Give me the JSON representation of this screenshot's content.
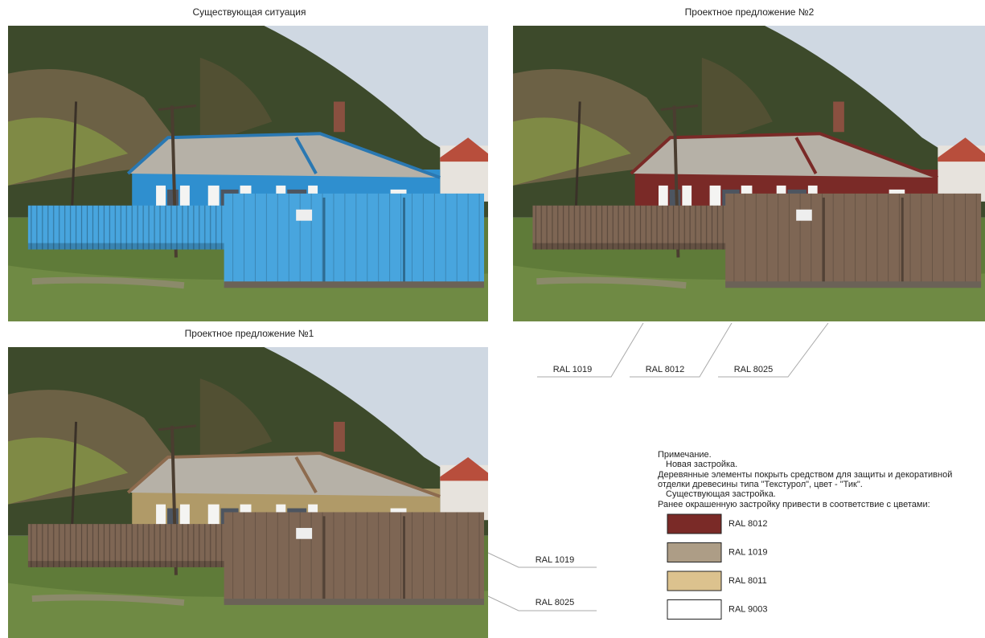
{
  "photos": [
    {
      "caption": "Существующая ситуация"
    },
    {
      "caption": "Проектное предложение №2"
    },
    {
      "caption": "Проектное предложение №1"
    }
  ],
  "callouts_proposal2": [
    "RAL 1019",
    "RAL 8012",
    "RAL 8025"
  ],
  "callouts_proposal1": [
    "RAL 1019",
    "RAL 8025"
  ],
  "note": {
    "title": "Примечание.",
    "new_heading": "Новая застройка.",
    "new_text_lines": [
      "Деревянные элементы покрыть средством для защиты и декоративной",
      "отделки древесины типа \"Текстурол\", цвет - \"Тик\"."
    ],
    "existing_heading": "Существующая застройка.",
    "existing_text": "Ранее окрашенную застройку привести в соответствие с цветами:",
    "swatches": [
      {
        "color": "#7a2a27",
        "label": "RAL 8012"
      },
      {
        "color": "#ad9d86",
        "label": "RAL 1019"
      },
      {
        "color": "#dcc28e",
        "label": "RAL 8011"
      },
      {
        "color": "#ffffff",
        "label": "RAL 9003"
      }
    ]
  }
}
